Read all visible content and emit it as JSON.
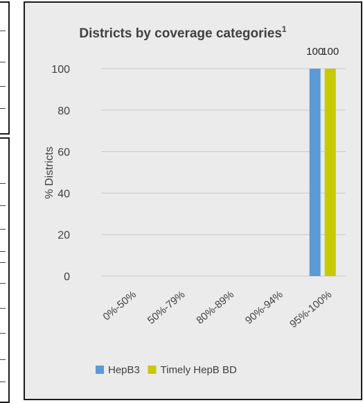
{
  "chart_data": {
    "type": "bar",
    "title": "Districts by coverage categories",
    "title_superscript": "1",
    "ylabel": "% Districts",
    "xlabel": "",
    "categories": [
      "0%-50%",
      "50%-79%",
      "80%-89%",
      "90%-94%",
      "95%-100%"
    ],
    "ylim": [
      0,
      100
    ],
    "yticks": [
      0,
      20,
      40,
      60,
      80,
      100
    ],
    "grid": true,
    "legend_position": "bottom",
    "series": [
      {
        "name": "HepB3",
        "color": "#5b9bd5",
        "values": [
          0,
          0,
          0,
          0,
          100
        ],
        "data_labels": [
          "",
          "",
          "",
          "",
          "100"
        ]
      },
      {
        "name": "Timely HepB BD",
        "color": "#c9c900",
        "values": [
          0,
          0,
          0,
          0,
          100
        ],
        "data_labels": [
          "",
          "",
          "",
          "",
          "100"
        ]
      }
    ]
  }
}
